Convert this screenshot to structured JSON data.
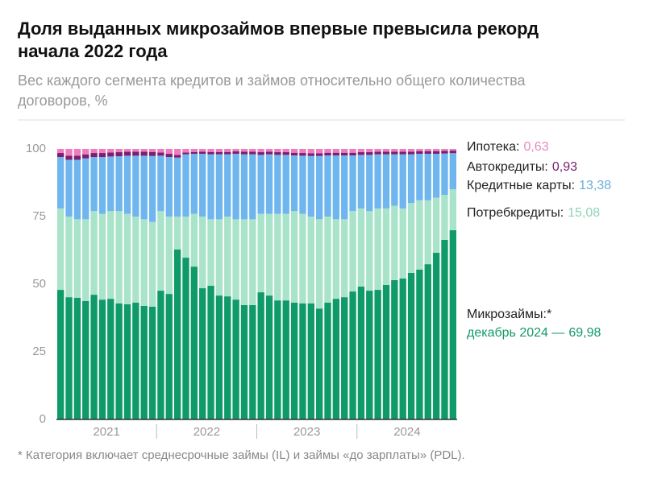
{
  "chart_data": {
    "type": "stacked_bar",
    "title": "Доля выданных микрозаймов впервые превысила рекорд начала 2022 года",
    "subtitle": "Вес каждого сегмента кредитов и займов относительно общего количества договоров, %",
    "footnote": "* Категория включает среднесрочные займы (IL) и займы «до зарплаты» (PDL).",
    "categories": [
      null,
      null,
      null,
      null,
      null,
      null,
      null,
      null,
      null,
      null,
      null,
      null,
      null,
      null,
      null,
      null,
      null,
      null,
      null,
      null,
      null,
      null,
      null,
      null,
      null,
      null,
      null,
      null,
      null,
      null,
      null,
      null,
      null,
      null,
      null,
      null,
      null,
      null,
      null,
      null,
      null,
      null,
      null,
      null,
      null,
      null,
      null,
      null
    ],
    "year_labels": [
      "2021",
      "2022",
      "2023",
      "2024"
    ],
    "ylim": [
      0,
      100
    ],
    "yticks": [
      0,
      25,
      50,
      75,
      100
    ],
    "micro_annotation": "декабрь 2024 —",
    "series": [
      {
        "name": "Микрозаймы:*",
        "color": "#0f9b69",
        "label_color": "#139a67",
        "values": [
          47.9,
          45.2,
          45,
          43.8,
          46.1,
          44.3,
          44.6,
          42.9,
          42.6,
          43.2,
          42,
          41.7,
          47.6,
          46.4,
          62.8,
          59.8,
          56.5,
          48.5,
          49.4,
          45.8,
          45.5,
          44.3,
          42.3,
          42.3,
          47,
          45.8,
          44,
          44,
          43.2,
          42.9,
          42.9,
          41,
          43.2,
          44.6,
          45.2,
          47.3,
          49.1,
          47.6,
          47.9,
          49.7,
          51.5,
          52.1,
          54.2,
          55.4,
          57.4,
          61.6,
          66.4,
          69.98
        ],
        "value_labels": [
          null,
          null,
          null,
          null,
          null,
          null,
          null,
          null,
          null,
          null,
          null,
          null,
          null,
          null,
          null,
          null,
          null,
          null,
          null,
          null,
          null,
          null,
          null,
          null,
          null,
          null,
          null,
          null,
          null,
          null,
          null,
          null,
          null,
          null,
          null,
          null,
          null,
          null,
          null,
          null,
          null,
          null,
          null,
          null,
          null,
          null,
          null,
          "69,98"
        ]
      },
      {
        "name": "Потребкредиты:",
        "color": "#a9e3c9",
        "label_color": "#8fd4b5",
        "values": [
          30.1,
          29.8,
          29,
          30.2,
          30.9,
          31.7,
          32.4,
          34.1,
          33.4,
          31.8,
          32,
          31.3,
          29.4,
          28.6,
          12.2,
          15.2,
          19.5,
          26.5,
          24.6,
          28.2,
          29.5,
          29.7,
          31.7,
          31.7,
          29,
          30.2,
          32,
          32,
          33.8,
          33.1,
          32.1,
          33,
          31.8,
          29.4,
          28.8,
          29.7,
          28.9,
          29.4,
          30.1,
          28.3,
          27.5,
          25.9,
          25.8,
          25.6,
          23.6,
          20.4,
          16.6,
          15.08
        ],
        "value_labels": [
          null,
          null,
          null,
          null,
          null,
          null,
          null,
          null,
          null,
          null,
          null,
          null,
          null,
          null,
          null,
          null,
          null,
          null,
          null,
          null,
          null,
          null,
          null,
          null,
          null,
          null,
          null,
          null,
          null,
          null,
          null,
          null,
          null,
          null,
          null,
          null,
          null,
          null,
          null,
          null,
          null,
          null,
          null,
          null,
          null,
          null,
          null,
          "15,08"
        ]
      },
      {
        "name": "Кредитные карты:",
        "color": "#6fb6ef",
        "label_color": "#6aaedc",
        "values": [
          19,
          21,
          22,
          22.5,
          20,
          21,
          20.2,
          20.3,
          21.5,
          22.5,
          23.5,
          24.4,
          20.5,
          22,
          21.8,
          23,
          22.2,
          23.2,
          24,
          24,
          23,
          24.2,
          24,
          24,
          21.8,
          22,
          21.8,
          21.8,
          20.6,
          21.5,
          22.4,
          23.4,
          22.6,
          23.6,
          23.6,
          20.6,
          19.8,
          20.8,
          20,
          20,
          19,
          20,
          18,
          17.2,
          17.2,
          16.2,
          15.3,
          13.38
        ],
        "value_labels": [
          null,
          null,
          null,
          null,
          null,
          null,
          null,
          null,
          null,
          null,
          null,
          null,
          null,
          null,
          null,
          null,
          null,
          null,
          null,
          null,
          null,
          null,
          null,
          null,
          null,
          null,
          null,
          null,
          null,
          null,
          null,
          null,
          null,
          null,
          null,
          null,
          null,
          null,
          null,
          null,
          null,
          null,
          null,
          null,
          null,
          null,
          null,
          "13,38"
        ]
      },
      {
        "name": "Автокредиты:",
        "color": "#7b1f6e",
        "label_color": "#7b1f6e",
        "values": [
          1.5,
          1.5,
          1.5,
          1.5,
          1.5,
          1.5,
          1.5,
          1.5,
          1.5,
          1.5,
          1.5,
          1.5,
          1.2,
          1.2,
          1.0,
          0.7,
          0.7,
          0.8,
          0.9,
          0.9,
          0.9,
          0.9,
          1.0,
          1.0,
          1.0,
          1.0,
          1.0,
          1.0,
          1.0,
          1.0,
          1.0,
          1.0,
          1.0,
          1.0,
          1.0,
          1.0,
          1.0,
          1.0,
          1.0,
          1.0,
          1.0,
          1.0,
          1.0,
          1.0,
          1.0,
          1.0,
          1.0,
          0.93
        ],
        "value_labels": [
          null,
          null,
          null,
          null,
          null,
          null,
          null,
          null,
          null,
          null,
          null,
          null,
          null,
          null,
          null,
          null,
          null,
          null,
          null,
          null,
          null,
          null,
          null,
          null,
          null,
          null,
          null,
          null,
          null,
          null,
          null,
          null,
          null,
          null,
          null,
          null,
          null,
          null,
          null,
          null,
          null,
          null,
          null,
          null,
          null,
          null,
          null,
          "0,93"
        ]
      },
      {
        "name": "Ипотека:",
        "color": "#f07cc0",
        "label_color": "#e58ac2",
        "values": [
          1.5,
          2.5,
          2.5,
          2,
          1.5,
          1.5,
          1.3,
          1.2,
          1.0,
          1.0,
          1.0,
          1.1,
          1.3,
          1.8,
          2.2,
          1.3,
          1.1,
          1.0,
          1.1,
          1.1,
          1.1,
          0.9,
          1.0,
          1.0,
          1.2,
          1.0,
          1.2,
          1.2,
          1.4,
          1.5,
          1.6,
          1.6,
          1.4,
          1.4,
          1.4,
          1.4,
          1.2,
          1.2,
          1.0,
          1.0,
          1.0,
          1.0,
          1.0,
          0.8,
          0.8,
          0.8,
          0.7,
          0.63
        ],
        "value_labels": [
          null,
          null,
          null,
          null,
          null,
          null,
          null,
          null,
          null,
          null,
          null,
          null,
          null,
          null,
          null,
          null,
          null,
          null,
          null,
          null,
          null,
          null,
          null,
          null,
          null,
          null,
          null,
          null,
          null,
          null,
          null,
          null,
          null,
          null,
          null,
          null,
          null,
          null,
          null,
          null,
          null,
          null,
          null,
          null,
          null,
          null,
          null,
          "0,63"
        ]
      }
    ]
  }
}
